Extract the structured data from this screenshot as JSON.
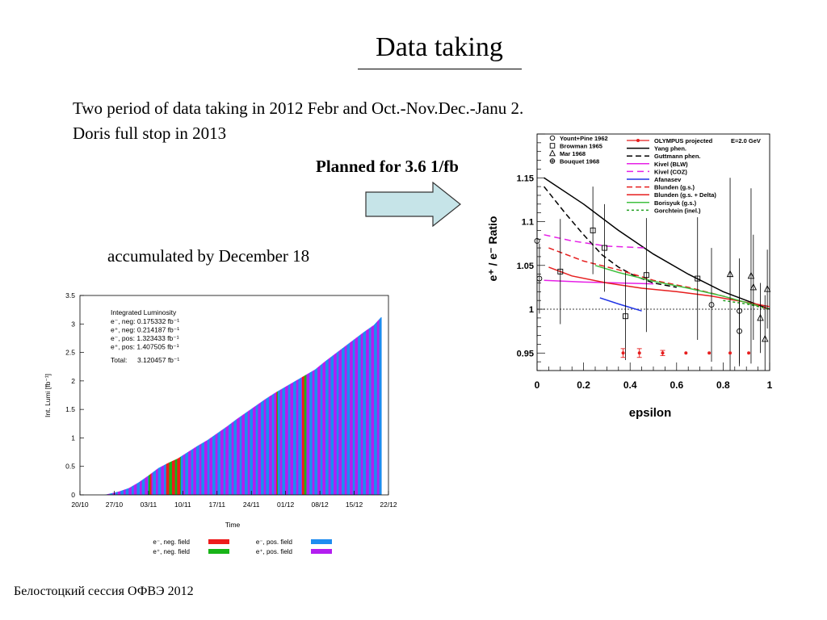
{
  "slide": {
    "title": "Data taking",
    "line1": "Two period of data taking in 2012 Febr and Oct.-Nov.Dec.-Janu 2.",
    "line2": "Doris full stop in 2013",
    "planned": "Planned for 3.6 1/fb",
    "accumulated": "accumulated by  December 18",
    "footer": "Белостоцкий сессия ОФВЭ 2012",
    "arrow_color": "#c6e4e8"
  },
  "chart_data": [
    {
      "type": "area",
      "title": "",
      "xlabel": "Time",
      "ylabel": "Int. Lumi  [fb⁻¹]",
      "ylim": [
        0,
        3.5
      ],
      "yticks": [
        "0",
        "0.5",
        "1",
        "1.5",
        "2",
        "2.5",
        "3",
        "3.5"
      ],
      "xticks": [
        "20/10",
        "27/10",
        "03/11",
        "10/11",
        "17/11",
        "24/11",
        "01/12",
        "08/12",
        "15/12",
        "22/12"
      ],
      "xrange_days": [
        0,
        63
      ],
      "infobox": {
        "title": "Integrated Luminosity",
        "lines": [
          "e⁻, neg: 0.175332 fb⁻¹",
          "e⁺, neg: 0.214187 fb⁻¹",
          "e⁻, pos: 1.323433 fb⁻¹",
          "e⁺, pos: 1.407505 fb⁻¹"
        ],
        "total_label": "Total:",
        "total_value": "3.120457 fb⁻¹"
      },
      "legend": [
        {
          "label": "e⁻, neg. field",
          "color": "#ee1c1c"
        },
        {
          "label": "e⁻, pos. field",
          "color": "#1e8cf0"
        },
        {
          "label": "e⁺, neg. field",
          "color": "#18b418"
        },
        {
          "label": "e⁺, pos. field",
          "color": "#b31ef0"
        }
      ],
      "curve": [
        [
          5,
          0
        ],
        [
          6,
          0.02
        ],
        [
          8,
          0.06
        ],
        [
          10,
          0.12
        ],
        [
          12,
          0.22
        ],
        [
          14,
          0.34
        ],
        [
          16,
          0.47
        ],
        [
          18,
          0.56
        ],
        [
          20,
          0.64
        ],
        [
          22,
          0.75
        ],
        [
          24,
          0.86
        ],
        [
          26,
          0.96
        ],
        [
          28,
          1.08
        ],
        [
          30,
          1.2
        ],
        [
          32,
          1.33
        ],
        [
          34,
          1.45
        ],
        [
          36,
          1.57
        ],
        [
          38,
          1.69
        ],
        [
          40,
          1.8
        ],
        [
          42,
          1.9
        ],
        [
          44,
          2.0
        ],
        [
          46,
          2.1
        ],
        [
          48,
          2.2
        ],
        [
          50,
          2.34
        ],
        [
          52,
          2.47
        ],
        [
          54,
          2.6
        ],
        [
          56,
          2.73
        ],
        [
          58,
          2.86
        ],
        [
          60,
          2.98
        ],
        [
          61.5,
          3.12
        ]
      ],
      "neg_field_days": [
        [
          14,
          14.6
        ],
        [
          17.5,
          20.5
        ],
        [
          40,
          40.3
        ],
        [
          45.3,
          46.1
        ]
      ]
    },
    {
      "type": "line",
      "title": "",
      "xlabel": "epsilon",
      "ylabel": "e⁺ / e⁻ Ratio",
      "xlim": [
        0,
        1
      ],
      "ylim": [
        0.93,
        1.2
      ],
      "xticks": [
        "0",
        "0.2",
        "0.4",
        "0.6",
        "0.8",
        "1"
      ],
      "yticks": [
        "0.95",
        "1",
        "1.05",
        "1.1",
        "1.15"
      ],
      "annotation": "E=2.0 GeV",
      "legend_left": [
        {
          "label": "Yount+Pine 1962",
          "marker": "circle"
        },
        {
          "label": "Browman 1965",
          "marker": "square"
        },
        {
          "label": "Mar 1968",
          "marker": "triangle"
        },
        {
          "label": "Bouquet 1968",
          "marker": "crossed-circle"
        }
      ],
      "series": [
        {
          "name": "Yang phen.",
          "color": "#000000",
          "dash": "",
          "x": [
            0.03,
            0.2,
            0.35,
            0.5,
            0.65,
            0.8,
            0.9,
            1.0
          ],
          "y": [
            1.15,
            1.12,
            1.09,
            1.063,
            1.04,
            1.02,
            1.01,
            1.0
          ]
        },
        {
          "name": "Guttmann phen.",
          "color": "#000000",
          "dash": "7,4",
          "x": [
            0.03,
            0.12,
            0.2,
            0.28,
            0.35,
            0.42,
            0.5,
            0.6
          ],
          "y": [
            1.14,
            1.11,
            1.085,
            1.062,
            1.048,
            1.038,
            1.03,
            1.025
          ]
        },
        {
          "name": "Kivel (BLW)",
          "color": "#e620e6",
          "dash": "",
          "x": [
            0.03,
            0.2,
            0.35,
            0.5
          ],
          "y": [
            1.033,
            1.031,
            1.03,
            1.029
          ]
        },
        {
          "name": "Kivel (COZ)",
          "color": "#e620e6",
          "dash": "8,5",
          "x": [
            0.03,
            0.15,
            0.3,
            0.47
          ],
          "y": [
            1.085,
            1.078,
            1.072,
            1.07
          ]
        },
        {
          "name": "Afanasev",
          "color": "#1e32e6",
          "dash": "",
          "x": [
            0.27,
            0.35,
            0.45
          ],
          "y": [
            1.013,
            1.006,
            0.998
          ]
        },
        {
          "name": "Blunden (g.s.)",
          "color": "#e61e1e",
          "dash": "7,4",
          "x": [
            0.05,
            0.2,
            0.35,
            0.5,
            0.65,
            0.8,
            1.0
          ],
          "y": [
            1.07,
            1.055,
            1.045,
            1.033,
            1.025,
            1.015,
            1.0
          ]
        },
        {
          "name": "Blunden (g.s. + Delta)",
          "color": "#e61e1e",
          "dash": "",
          "x": [
            0.05,
            0.15,
            0.3,
            0.45,
            0.6,
            0.75,
            0.9,
            1.0
          ],
          "y": [
            1.048,
            1.038,
            1.03,
            1.024,
            1.02,
            1.015,
            1.008,
            1.003
          ]
        },
        {
          "name": "Borisyuk (g.s.)",
          "color": "#40c040",
          "dash": "",
          "x": [
            0.25,
            0.35,
            0.5,
            0.65,
            0.8,
            0.95
          ],
          "y": [
            1.05,
            1.042,
            1.032,
            1.024,
            1.015,
            1.004
          ]
        },
        {
          "name": "Gorchtein (inel.)",
          "color": "#20a020",
          "dash": "3,3",
          "x": [
            0.8,
            0.9,
            1.0
          ],
          "y": [
            1.01,
            1.006,
            1.0
          ]
        }
      ],
      "olympus_projected": {
        "name": "OLYMPUS projected",
        "color": "#e61e1e",
        "x": [
          0.37,
          0.44,
          0.54,
          0.64,
          0.74,
          0.83,
          0.91
        ],
        "y": [
          0.95,
          0.95,
          0.95,
          0.95,
          0.95,
          0.95,
          0.95
        ],
        "err": [
          0.005,
          0.005,
          0.003,
          0,
          0,
          0,
          0
        ]
      },
      "old_data": [
        {
          "marker": "circle",
          "x": 0.0,
          "y": 1.078,
          "err": 0.11
        },
        {
          "marker": "circle",
          "x": 0.01,
          "y": 1.035,
          "err": 0.04
        },
        {
          "marker": "square",
          "x": 0.1,
          "y": 1.043,
          "err": 0.06
        },
        {
          "marker": "square",
          "x": 0.24,
          "y": 1.09,
          "err": 0.05
        },
        {
          "marker": "square",
          "x": 0.29,
          "y": 1.07,
          "err": 0.05
        },
        {
          "marker": "square",
          "x": 0.38,
          "y": 0.992,
          "err": 0.05
        },
        {
          "marker": "square",
          "x": 0.47,
          "y": 1.039,
          "err": 0.065
        },
        {
          "marker": "square",
          "x": 0.69,
          "y": 1.035,
          "err": 0.07
        },
        {
          "marker": "circle",
          "x": 0.75,
          "y": 1.005,
          "err": 0.065
        },
        {
          "marker": "triangle",
          "x": 0.83,
          "y": 1.04,
          "err": 0.11
        },
        {
          "marker": "circle",
          "x": 0.87,
          "y": 0.998,
          "err": 0.06
        },
        {
          "marker": "circle",
          "x": 0.87,
          "y": 0.975,
          "err": 0.04
        },
        {
          "marker": "triangle",
          "x": 0.92,
          "y": 1.038,
          "err": 0.1
        },
        {
          "marker": "triangle",
          "x": 0.93,
          "y": 1.025,
          "err": 0.06
        },
        {
          "marker": "triangle",
          "x": 0.96,
          "y": 0.99,
          "err": 0.04
        },
        {
          "marker": "triangle",
          "x": 0.98,
          "y": 0.966,
          "err": 0.05
        },
        {
          "marker": "triangle",
          "x": 0.99,
          "y": 1.023,
          "err": 0.045
        }
      ]
    }
  ]
}
